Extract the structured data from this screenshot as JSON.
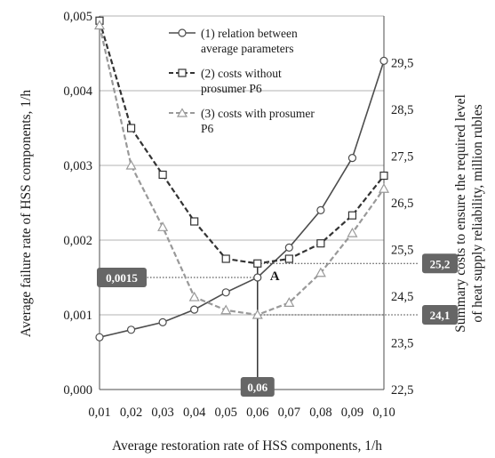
{
  "chart_data": {
    "type": "line",
    "xlabel": "Average restoration rate of HSS components, 1/h",
    "ylabel_left": "Average failure rate of HSS components, 1/h",
    "ylabel_right_line1": "Summary costs to ensure the required level",
    "ylabel_right_line2": "of heat supply reliability, million rubles",
    "x": [
      0.01,
      0.02,
      0.03,
      0.04,
      0.05,
      0.06,
      0.07,
      0.08,
      0.09,
      0.1
    ],
    "x_tick_labels": [
      "0,01",
      "0,02",
      "0,03",
      "0,04",
      "0,05",
      "0,06",
      "0,07",
      "0,08",
      "0,09",
      "0,10"
    ],
    "y_left_lim": [
      0,
      0.005
    ],
    "y_left_ticks": [
      0,
      0.001,
      0.002,
      0.003,
      0.004,
      0.005
    ],
    "y_left_tick_labels": [
      "0,000",
      "0,001",
      "0,002",
      "0,003",
      "0,004",
      "0,005"
    ],
    "y_right_lim": [
      22.5,
      30.5
    ],
    "y_right_ticks": [
      22.5,
      23.5,
      24.5,
      25.5,
      26.5,
      27.5,
      28.5,
      29.5
    ],
    "y_right_tick_labels": [
      "22,5",
      "23,5",
      "24,5",
      "25,5",
      "26,5",
      "27,5",
      "28,5",
      "29,5"
    ],
    "grid": true,
    "legend_position": "top-center",
    "series": [
      {
        "name_line1": "(1) relation between",
        "name_line2": "average parameters",
        "axis": "left",
        "marker": "circle",
        "style": "solid",
        "color": "#4d4d4d",
        "values": [
          0.0007,
          0.0008,
          0.0009,
          0.00107,
          0.0013,
          0.0015,
          0.0019,
          0.0024,
          0.0031,
          0.0044
        ]
      },
      {
        "name_line1": "(2) costs without",
        "name_line2": "prosumer P6",
        "axis": "right",
        "marker": "square",
        "style": "dashed",
        "color": "#333333",
        "values": [
          30.4,
          28.1,
          27.1,
          26.1,
          25.3,
          25.2,
          25.3,
          25.63,
          26.23,
          27.08
        ]
      },
      {
        "name_line1": "(3) costs with prosumer",
        "name_line2": "P6",
        "axis": "right",
        "marker": "triangle",
        "style": "dashed",
        "color": "#999999",
        "values": [
          30.3,
          27.3,
          25.98,
          24.48,
          24.2,
          24.1,
          24.36,
          25.0,
          25.85,
          26.8
        ]
      }
    ],
    "annotations": {
      "point_label": "A",
      "point_x": 0.06,
      "point_y_left": 0.0015,
      "callout_left_y": "0,0015",
      "callout_x": "0,06",
      "callout_right_upper": "25,2",
      "callout_right_upper_value": 25.2,
      "callout_right_lower": "24,1",
      "callout_right_lower_value": 24.1
    },
    "colors": {
      "callout_fill": "#666666",
      "gridline": "#b3b3b3",
      "axis": "#4d4d4d"
    }
  }
}
